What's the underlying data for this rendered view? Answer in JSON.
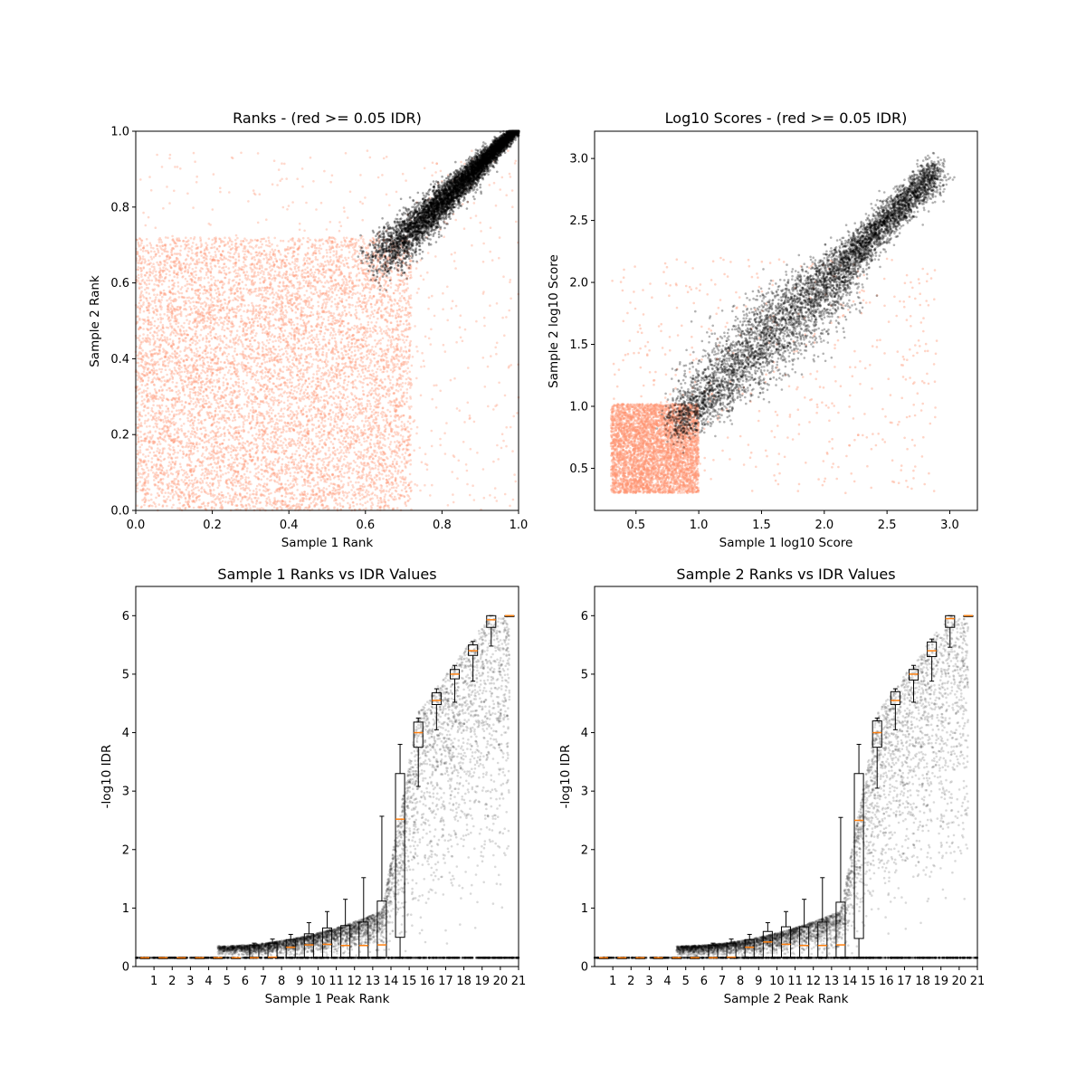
{
  "colors": {
    "fail_points": "#FF9370",
    "pass_points": "#000000",
    "box_median": "#FF7F0E",
    "frame": "#000000"
  },
  "chart_data": [
    {
      "id": "ranks",
      "type": "scatter",
      "title": "Ranks - (red >= 0.05 IDR)",
      "xlabel": "Sample 1 Rank",
      "ylabel": "Sample 2 Rank",
      "xlim": [
        0.0,
        1.0
      ],
      "ylim": [
        0.0,
        1.0
      ],
      "xticks": [
        0.0,
        0.2,
        0.4,
        0.6,
        0.8,
        1.0
      ],
      "yticks": [
        0.0,
        0.2,
        0.4,
        0.6,
        0.8,
        1.0
      ],
      "xtick_labels": [
        "0.0",
        "0.2",
        "0.4",
        "0.6",
        "0.8",
        "1.0"
      ],
      "ytick_labels": [
        "0.0",
        "0.2",
        "0.4",
        "0.6",
        "0.8",
        "1.0"
      ],
      "series": [
        {
          "kind": "fail",
          "region_x": [
            0.0,
            0.72
          ],
          "region_y": [
            0.0,
            0.72
          ],
          "approx_points": 9000
        },
        {
          "kind": "pass",
          "diagonal_from": [
            0.63,
            0.64
          ],
          "diagonal_to": [
            1.0,
            1.0
          ],
          "approx_points": 6000
        }
      ]
    },
    {
      "id": "scores",
      "type": "scatter",
      "title": "Log10 Scores - (red >= 0.05 IDR)",
      "xlabel": "Sample 1 log10 Score",
      "ylabel": "Sample 2 log10 Score",
      "xlim": [
        0.17,
        3.22
      ],
      "ylim": [
        0.16,
        3.22
      ],
      "xticks": [
        0.5,
        1.0,
        1.5,
        2.0,
        2.5,
        3.0
      ],
      "yticks": [
        0.5,
        1.0,
        1.5,
        2.0,
        2.5,
        3.0
      ],
      "xtick_labels": [
        "0.5",
        "1.0",
        "1.5",
        "2.0",
        "2.5",
        "3.0"
      ],
      "ytick_labels": [
        "0.5",
        "1.0",
        "1.5",
        "2.0",
        "2.5",
        "3.0"
      ],
      "series": [
        {
          "kind": "fail",
          "cluster_x": [
            0.3,
            1.0
          ],
          "cluster_y": [
            0.3,
            1.0
          ],
          "approx_points": 5000
        },
        {
          "kind": "pass",
          "diagonal_from": [
            0.8,
            0.8
          ],
          "diagonal_to": [
            2.9,
            2.9
          ],
          "approx_points": 6000
        }
      ]
    },
    {
      "id": "s1_idr",
      "type": "scatter",
      "title": "Sample 1 Ranks vs IDR Values",
      "xlabel": "Sample 1 Peak Rank",
      "ylabel": "-log10 IDR",
      "xlim": [
        0.0,
        21.0
      ],
      "ylim": [
        0.0,
        6.5
      ],
      "xticks": [
        1,
        2,
        3,
        4,
        5,
        6,
        7,
        8,
        9,
        10,
        11,
        12,
        13,
        14,
        15,
        16,
        17,
        18,
        19,
        20,
        21
      ],
      "yticks": [
        0,
        1,
        2,
        3,
        4,
        5,
        6
      ],
      "xtick_labels": [
        "1",
        "2",
        "3",
        "4",
        "5",
        "6",
        "7",
        "8",
        "9",
        "10",
        "11",
        "12",
        "13",
        "14",
        "15",
        "16",
        "17",
        "18",
        "19",
        "20",
        "21"
      ],
      "ytick_labels": [
        "0",
        "1",
        "2",
        "3",
        "4",
        "5",
        "6"
      ],
      "boxes": [
        {
          "x": 0.5,
          "q1": 0.15,
          "med": 0.15,
          "q3": 0.15,
          "lo": 0.15,
          "hi": 0.15
        },
        {
          "x": 1.5,
          "q1": 0.15,
          "med": 0.15,
          "q3": 0.15,
          "lo": 0.15,
          "hi": 0.15
        },
        {
          "x": 2.5,
          "q1": 0.15,
          "med": 0.15,
          "q3": 0.15,
          "lo": 0.15,
          "hi": 0.15
        },
        {
          "x": 3.5,
          "q1": 0.15,
          "med": 0.15,
          "q3": 0.15,
          "lo": 0.15,
          "hi": 0.15
        },
        {
          "x": 4.5,
          "q1": 0.15,
          "med": 0.15,
          "q3": 0.15,
          "lo": 0.15,
          "hi": 0.15
        },
        {
          "x": 5.5,
          "q1": 0.15,
          "med": 0.15,
          "q3": 0.15,
          "lo": 0.15,
          "hi": 0.15
        },
        {
          "x": 6.5,
          "q1": 0.15,
          "med": 0.15,
          "q3": 0.37,
          "lo": 0.15,
          "hi": 0.4
        },
        {
          "x": 7.5,
          "q1": 0.15,
          "med": 0.16,
          "q3": 0.4,
          "lo": 0.15,
          "hi": 0.47
        },
        {
          "x": 8.5,
          "q1": 0.15,
          "med": 0.33,
          "q3": 0.46,
          "lo": 0.15,
          "hi": 0.55
        },
        {
          "x": 9.5,
          "q1": 0.15,
          "med": 0.37,
          "q3": 0.56,
          "lo": 0.15,
          "hi": 0.75
        },
        {
          "x": 10.5,
          "q1": 0.15,
          "med": 0.38,
          "q3": 0.66,
          "lo": 0.15,
          "hi": 0.94
        },
        {
          "x": 11.5,
          "q1": 0.15,
          "med": 0.36,
          "q3": 0.7,
          "lo": 0.15,
          "hi": 1.15
        },
        {
          "x": 12.5,
          "q1": 0.15,
          "med": 0.36,
          "q3": 0.76,
          "lo": 0.15,
          "hi": 1.52
        },
        {
          "x": 13.5,
          "q1": 0.15,
          "med": 0.37,
          "q3": 1.12,
          "lo": 0.15,
          "hi": 2.57
        },
        {
          "x": 14.5,
          "q1": 0.5,
          "med": 2.52,
          "q3": 3.3,
          "lo": 0.15,
          "hi": 3.8
        },
        {
          "x": 15.5,
          "q1": 3.75,
          "med": 4.0,
          "q3": 4.18,
          "lo": 3.08,
          "hi": 4.25
        },
        {
          "x": 16.5,
          "q1": 4.48,
          "med": 4.55,
          "q3": 4.68,
          "lo": 4.05,
          "hi": 4.75
        },
        {
          "x": 17.5,
          "q1": 4.92,
          "med": 5.0,
          "q3": 5.08,
          "lo": 4.52,
          "hi": 5.15
        },
        {
          "x": 18.5,
          "q1": 5.32,
          "med": 5.4,
          "q3": 5.5,
          "lo": 4.88,
          "hi": 5.56
        },
        {
          "x": 19.5,
          "q1": 5.8,
          "med": 5.93,
          "q3": 6.0,
          "lo": 5.48,
          "hi": 6.0
        },
        {
          "x": 20.5,
          "q1": 6.0,
          "med": 6.0,
          "q3": 6.0,
          "lo": 6.0,
          "hi": 6.0
        }
      ]
    },
    {
      "id": "s2_idr",
      "type": "scatter",
      "title": "Sample 2 Ranks vs IDR Values",
      "xlabel": "Sample 2 Peak Rank",
      "ylabel": "-log10 IDR",
      "xlim": [
        0.0,
        21.0
      ],
      "ylim": [
        0.0,
        6.5
      ],
      "xticks": [
        1,
        2,
        3,
        4,
        5,
        6,
        7,
        8,
        9,
        10,
        11,
        12,
        13,
        14,
        15,
        16,
        17,
        18,
        19,
        20,
        21
      ],
      "yticks": [
        0,
        1,
        2,
        3,
        4,
        5,
        6
      ],
      "xtick_labels": [
        "1",
        "2",
        "3",
        "4",
        "5",
        "6",
        "7",
        "8",
        "9",
        "10",
        "11",
        "12",
        "13",
        "14",
        "15",
        "16",
        "17",
        "18",
        "19",
        "20",
        "21"
      ],
      "ytick_labels": [
        "0",
        "1",
        "2",
        "3",
        "4",
        "5",
        "6"
      ],
      "boxes": [
        {
          "x": 0.5,
          "q1": 0.15,
          "med": 0.15,
          "q3": 0.15,
          "lo": 0.15,
          "hi": 0.15
        },
        {
          "x": 1.5,
          "q1": 0.15,
          "med": 0.15,
          "q3": 0.15,
          "lo": 0.15,
          "hi": 0.15
        },
        {
          "x": 2.5,
          "q1": 0.15,
          "med": 0.15,
          "q3": 0.15,
          "lo": 0.15,
          "hi": 0.15
        },
        {
          "x": 3.5,
          "q1": 0.15,
          "med": 0.15,
          "q3": 0.15,
          "lo": 0.15,
          "hi": 0.15
        },
        {
          "x": 4.5,
          "q1": 0.15,
          "med": 0.15,
          "q3": 0.15,
          "lo": 0.15,
          "hi": 0.15
        },
        {
          "x": 5.5,
          "q1": 0.15,
          "med": 0.15,
          "q3": 0.15,
          "lo": 0.15,
          "hi": 0.15
        },
        {
          "x": 6.5,
          "q1": 0.15,
          "med": 0.15,
          "q3": 0.37,
          "lo": 0.15,
          "hi": 0.4
        },
        {
          "x": 7.5,
          "q1": 0.15,
          "med": 0.16,
          "q3": 0.4,
          "lo": 0.15,
          "hi": 0.47
        },
        {
          "x": 8.5,
          "q1": 0.15,
          "med": 0.33,
          "q3": 0.46,
          "lo": 0.15,
          "hi": 0.55
        },
        {
          "x": 9.5,
          "q1": 0.15,
          "med": 0.42,
          "q3": 0.6,
          "lo": 0.15,
          "hi": 0.75
        },
        {
          "x": 10.5,
          "q1": 0.15,
          "med": 0.38,
          "q3": 0.68,
          "lo": 0.15,
          "hi": 0.94
        },
        {
          "x": 11.5,
          "q1": 0.15,
          "med": 0.36,
          "q3": 0.68,
          "lo": 0.15,
          "hi": 1.15
        },
        {
          "x": 12.5,
          "q1": 0.15,
          "med": 0.36,
          "q3": 0.76,
          "lo": 0.15,
          "hi": 1.52
        },
        {
          "x": 13.5,
          "q1": 0.15,
          "med": 0.37,
          "q3": 1.1,
          "lo": 0.15,
          "hi": 2.55
        },
        {
          "x": 14.5,
          "q1": 0.48,
          "med": 2.5,
          "q3": 3.3,
          "lo": 0.15,
          "hi": 3.8
        },
        {
          "x": 15.5,
          "q1": 3.75,
          "med": 4.0,
          "q3": 4.2,
          "lo": 3.05,
          "hi": 4.25
        },
        {
          "x": 16.5,
          "q1": 4.48,
          "med": 4.55,
          "q3": 4.7,
          "lo": 4.05,
          "hi": 4.75
        },
        {
          "x": 17.5,
          "q1": 4.9,
          "med": 5.0,
          "q3": 5.08,
          "lo": 4.52,
          "hi": 5.15
        },
        {
          "x": 18.5,
          "q1": 5.3,
          "med": 5.4,
          "q3": 5.55,
          "lo": 4.88,
          "hi": 5.6
        },
        {
          "x": 19.5,
          "q1": 5.8,
          "med": 5.95,
          "q3": 6.0,
          "lo": 5.46,
          "hi": 6.0
        },
        {
          "x": 20.5,
          "q1": 6.0,
          "med": 6.0,
          "q3": 6.0,
          "lo": 6.0,
          "hi": 6.0
        }
      ]
    }
  ]
}
